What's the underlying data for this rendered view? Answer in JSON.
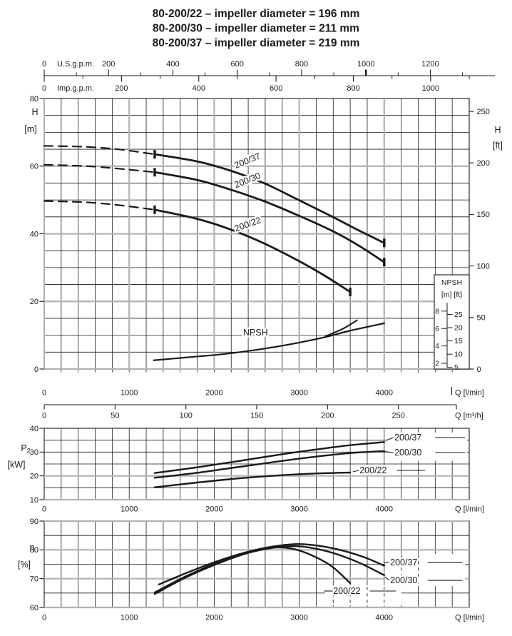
{
  "title_lines": [
    "80-200/22 – impeller diameter = 196 mm",
    "80-200/30 – impeller diameter = 211 mm",
    "80-200/37 – impeller diameter = 219 mm"
  ],
  "colors": {
    "ink": "#1a1a1a",
    "grid_major": "#b2b2b2",
    "background": "#ffffff"
  },
  "top_axes": [
    {
      "label": "U.S.g.p.m.",
      "lpm_per_unit": 3.7854,
      "major_ticks": [
        0,
        200,
        400,
        600,
        800,
        1000,
        1200
      ],
      "minor_step": 100,
      "axis_max": 1300,
      "bold_tick": 1000
    },
    {
      "label": "Imp.g.p.m.",
      "lpm_per_unit": 4.5461,
      "major_ticks": [
        0,
        200,
        400,
        600,
        800,
        1000
      ],
      "minor_step": 100,
      "axis_max": 1100,
      "bold_tick": null
    }
  ],
  "chart_data": [
    {
      "id": "head",
      "type": "line",
      "xlabel": "Q [l/min]",
      "ylabel_lines": [
        {
          "text": "H"
        },
        {
          "text": "[m]"
        }
      ],
      "y2label_lines": [
        {
          "text": "H"
        },
        {
          "text": "[ft]"
        }
      ],
      "xlim": [
        0,
        5000
      ],
      "ylim": [
        0,
        80
      ],
      "x_major": 1000,
      "x_minor": 200,
      "y_major": 20,
      "y_minor": 5,
      "x_tick_labels": [
        0,
        1000,
        2000,
        3000,
        4000
      ],
      "y_tick_labels": [
        0,
        20,
        40,
        60,
        80
      ],
      "y2_tick_labels_ft": [
        0,
        50,
        100,
        150,
        200,
        250
      ],
      "secondary_x_axis": {
        "label": "Q [m³/h]",
        "lpm_per_unit": 16.6667,
        "ticks": [
          0,
          50,
          100,
          150,
          200,
          250
        ]
      },
      "series": [
        {
          "name": "200/37",
          "dashed_points": [
            [
              0,
              66
            ],
            [
              500,
              65.7
            ],
            [
              900,
              64.9
            ],
            [
              1300,
              63.5
            ]
          ],
          "points": [
            [
              1300,
              63.5
            ],
            [
              1800,
              61.4
            ],
            [
              2200,
              58.6
            ],
            [
              2600,
              54.8
            ],
            [
              3000,
              49.9
            ],
            [
              3400,
              44.9
            ],
            [
              3700,
              41.0
            ],
            [
              4000,
              37.3
            ]
          ],
          "end_bars": [
            [
              1300,
              63.5
            ],
            [
              4000,
              37.3
            ]
          ],
          "label_anchor": {
            "q": 2255,
            "h": 59.3,
            "rotation": -22
          }
        },
        {
          "name": "200/30",
          "dashed_points": [
            [
              0,
              60.4
            ],
            [
              500,
              60.0
            ],
            [
              900,
              59.2
            ],
            [
              1300,
              58.2
            ]
          ],
          "points": [
            [
              1300,
              58.2
            ],
            [
              1800,
              55.9
            ],
            [
              2200,
              53.0
            ],
            [
              2600,
              49.5
            ],
            [
              3000,
              45.3
            ],
            [
              3400,
              40.7
            ],
            [
              3700,
              36.5
            ],
            [
              4000,
              31.6
            ]
          ],
          "end_bars": [
            [
              1300,
              58.2
            ],
            [
              4000,
              31.6
            ]
          ],
          "label_anchor": {
            "q": 2255,
            "h": 53.5,
            "rotation": -22
          }
        },
        {
          "name": "200/22",
          "dashed_points": [
            [
              0,
              49.7
            ],
            [
              500,
              49.3
            ],
            [
              900,
              48.4
            ],
            [
              1300,
              47.1
            ]
          ],
          "points": [
            [
              1300,
              47.1
            ],
            [
              1800,
              44.4
            ],
            [
              2200,
              41.2
            ],
            [
              2600,
              37.0
            ],
            [
              3000,
              31.9
            ],
            [
              3300,
              27.6
            ],
            [
              3600,
              22.8
            ]
          ],
          "end_bars": [
            [
              1300,
              47.1
            ],
            [
              3600,
              22.8
            ]
          ],
          "label_anchor": {
            "q": 2255,
            "h": 40.6,
            "rotation": -20
          }
        }
      ],
      "npsh": {
        "label": "NPSH",
        "label_anchor": {
          "q": 2340,
          "m": 5.2
        },
        "points": [
          [
            1290,
            2.35
          ],
          [
            1700,
            2.7
          ],
          [
            2100,
            3.05
          ],
          [
            2500,
            3.55
          ],
          [
            2900,
            4.2
          ],
          [
            3300,
            5.0
          ],
          [
            3600,
            5.75
          ],
          [
            4000,
            6.6
          ]
        ],
        "branch_points": [
          [
            3310,
            5.1
          ],
          [
            3520,
            6.0
          ],
          [
            3680,
            6.95
          ]
        ],
        "inset": {
          "title": "NPSH",
          "unit_labels": "[m] [ft]",
          "m_ticks": [
            2,
            4,
            6,
            8
          ],
          "ft_ticks": [
            5,
            10,
            15,
            20,
            25
          ]
        }
      }
    },
    {
      "id": "power",
      "type": "line",
      "xlabel": "Q [l/min]",
      "ylabel_lines": [
        {
          "text": "P",
          "sub": "2"
        },
        {
          "text": "[kW]"
        }
      ],
      "xlim": [
        0,
        5000
      ],
      "ylim": [
        10,
        40
      ],
      "x_major": 1000,
      "x_minor": 200,
      "y_major": 10,
      "y_minor": 5,
      "x_tick_labels": [
        0,
        1000,
        2000,
        3000,
        4000
      ],
      "y_tick_labels": [
        10,
        20,
        30,
        40
      ],
      "gray_y_values": [
        10,
        20
      ],
      "series": [
        {
          "name": "200/37",
          "points": [
            [
              1300,
              21.2
            ],
            [
              1800,
              23.6
            ],
            [
              2300,
              26.3
            ],
            [
              2800,
              29.1
            ],
            [
              3200,
              31.1
            ],
            [
              3600,
              32.9
            ],
            [
              4000,
              34.2
            ]
          ],
          "label_anchor": {
            "q": 4120,
            "v": 36.1
          },
          "leaders": [
            [
              [
                4020,
                34.9
              ],
              [
                4110,
                36.1
              ]
            ],
            [
              [
                4600,
                36.1
              ],
              [
                4950,
                36.1
              ]
            ]
          ]
        },
        {
          "name": "200/30",
          "points": [
            [
              1300,
              19.2
            ],
            [
              1800,
              21.3
            ],
            [
              2300,
              23.8
            ],
            [
              2800,
              26.3
            ],
            [
              3200,
              28.1
            ],
            [
              3600,
              29.6
            ],
            [
              4000,
              30.4
            ]
          ],
          "label_anchor": {
            "q": 4120,
            "v": 29.8
          },
          "leaders": [
            [
              [
                4010,
                30.2
              ],
              [
                4110,
                29.8
              ]
            ],
            [
              [
                4600,
                29.8
              ],
              [
                4950,
                29.8
              ]
            ]
          ]
        },
        {
          "name": "200/22",
          "points": [
            [
              1300,
              15.2
            ],
            [
              1800,
              17.2
            ],
            [
              2300,
              19.0
            ],
            [
              2800,
              20.3
            ],
            [
              3200,
              21.0
            ],
            [
              3600,
              21.4
            ]
          ],
          "label_anchor": {
            "q": 3710,
            "v": 22.3
          },
          "leaders": [
            [
              [
                3630,
                21.7
              ],
              [
                3700,
                22.3
              ]
            ],
            [
              [
                4150,
                22.3
              ],
              [
                4480,
                22.3
              ]
            ]
          ]
        }
      ]
    },
    {
      "id": "eff",
      "type": "line",
      "xlabel": "Q [l/min]",
      "ylabel_lines": [
        {
          "text": "η"
        },
        {
          "text": "[%]"
        }
      ],
      "xlim": [
        0,
        5000
      ],
      "ylim": [
        60,
        90
      ],
      "x_major": 1000,
      "x_minor": 200,
      "y_major": 10,
      "y_minor": 5,
      "x_tick_labels": [
        0,
        1000,
        2000,
        3000,
        4000
      ],
      "y_tick_labels": [
        60,
        70,
        80,
        90
      ],
      "gray_y_values": [
        60,
        70,
        80,
        90
      ],
      "series": [
        {
          "name": "200/37",
          "points": [
            [
              1350,
              68.0
            ],
            [
              1750,
              72.9
            ],
            [
              2150,
              77.2
            ],
            [
              2550,
              80.4
            ],
            [
              2900,
              81.9
            ],
            [
              3150,
              81.7
            ],
            [
              3450,
              80.2
            ],
            [
              3750,
              77.6
            ],
            [
              4000,
              74.5
            ]
          ],
          "label_anchor": {
            "q": 4070,
            "v": 75.6
          },
          "leaders": [
            [
              [
                3990,
                75.6
              ],
              [
                4055,
                75.6
              ]
            ],
            [
              [
                4510,
                75.6
              ],
              [
                4920,
                75.6
              ]
            ]
          ]
        },
        {
          "name": "200/30",
          "points": [
            [
              1300,
              65.2
            ],
            [
              1700,
              71.3
            ],
            [
              2100,
              76.2
            ],
            [
              2500,
              79.7
            ],
            [
              2850,
              81.2
            ],
            [
              3100,
              80.9
            ],
            [
              3400,
              78.9
            ],
            [
              3700,
              75.6
            ],
            [
              4000,
              71.2
            ]
          ],
          "label_anchor": {
            "q": 4070,
            "v": 69.4
          },
          "leaders": [
            [
              [
                4010,
                70.6
              ],
              [
                4060,
                69.4
              ]
            ],
            [
              [
                4510,
                69.4
              ],
              [
                4920,
                69.4
              ]
            ]
          ]
        },
        {
          "name": "200/22",
          "points": [
            [
              1300,
              64.7
            ],
            [
              1700,
              70.9
            ],
            [
              2100,
              75.9
            ],
            [
              2450,
              79.4
            ],
            [
              2700,
              80.8
            ],
            [
              2950,
              80.2
            ],
            [
              3200,
              77.4
            ],
            [
              3400,
              73.9
            ],
            [
              3600,
              68.4
            ]
          ],
          "label_anchor": {
            "q": 3400,
            "v": 65.7
          },
          "leaders": [
            [
              [
                3290,
                65.7
              ],
              [
                3395,
                65.7
              ]
            ],
            [
              [
                3830,
                65.7
              ],
              [
                4140,
                65.7
              ]
            ]
          ]
        }
      ]
    }
  ]
}
